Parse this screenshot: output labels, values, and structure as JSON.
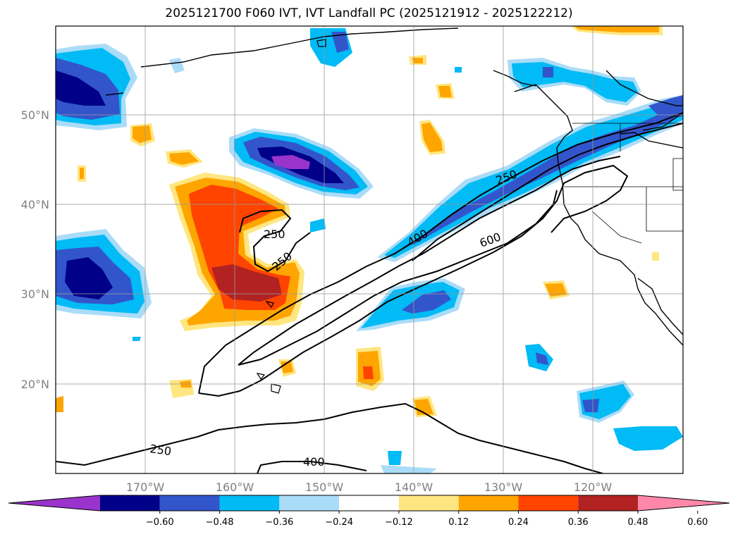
{
  "title": "2025121700 F060 IVT, IVT Landfall PC (2025121912 - 2025122212)",
  "map": {
    "lat_labels": [
      {
        "value": 50,
        "label": "50°N"
      },
      {
        "value": 40,
        "label": "40°N"
      },
      {
        "value": 30,
        "label": "30°N"
      },
      {
        "value": 20,
        "label": "20°N"
      }
    ],
    "lon_labels": [
      {
        "value": -170,
        "label": "170°W"
      },
      {
        "value": -160,
        "label": "160°W"
      },
      {
        "value": -150,
        "label": "150°W"
      },
      {
        "value": -140,
        "label": "140°W"
      },
      {
        "value": -130,
        "label": "130°W"
      },
      {
        "value": -120,
        "label": "120°W"
      }
    ],
    "lon_range": [
      -180,
      -110
    ],
    "lat_range": [
      10,
      60
    ],
    "gridlines": true,
    "ivt_contour_labels": [
      "250",
      "250",
      "250",
      "400",
      "600",
      "250",
      "400"
    ]
  },
  "colorbar": {
    "ticks": [
      "−0.60",
      "−0.48",
      "−0.36",
      "−0.24",
      "−0.12",
      "0.12",
      "0.24",
      "0.36",
      "0.48",
      "0.60"
    ],
    "colors": [
      "#9933cc",
      "#000088",
      "#3355cc",
      "#00bbf5",
      "#aadcf8",
      "#ffffff",
      "#ffe680",
      "#ffa500",
      "#ff4400",
      "#b22222",
      "#ff88aa"
    ],
    "extend": "both"
  }
}
